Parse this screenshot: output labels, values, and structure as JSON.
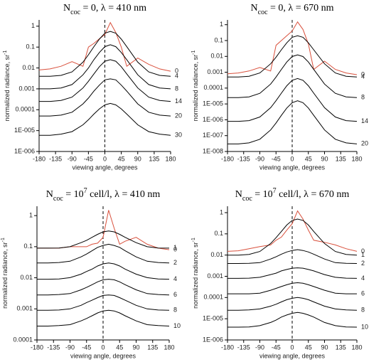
{
  "chart_data": [
    {
      "type": "line",
      "title_parts": [
        {
          "text": "N"
        },
        {
          "text": "coc",
          "shift": "sub"
        },
        {
          "text": " = 0, λ = 410 nm"
        }
      ],
      "xlabel": "viewing angle, degrees",
      "ylabel_parts": [
        {
          "text": "normalized radiance, sr"
        },
        {
          "text": "-1",
          "shift": "super"
        }
      ],
      "yscale": "log",
      "xlim": [
        -180,
        180
      ],
      "ylim": [
        1e-06,
        2
      ],
      "xticks": [
        -180,
        -135,
        -90,
        -45,
        0,
        45,
        90,
        135,
        180
      ],
      "yticks": [
        {
          "value": 1e-06,
          "label": "1E-006"
        },
        {
          "value": 1e-05,
          "label": "1E-005"
        },
        0.0001,
        0.001,
        0.01,
        0.1,
        1
      ],
      "x": [
        -180,
        -150,
        -120,
        -90,
        -60,
        -45,
        -30,
        -15,
        0,
        15,
        30,
        45,
        60,
        90,
        120,
        150,
        180
      ],
      "series": [
        {
          "name": "0",
          "color": "#d9503c",
          "values": [
            0.008,
            0.009,
            0.012,
            0.02,
            0.012,
            0.1,
            0.15,
            0.25,
            0.4,
            1.5,
            0.5,
            0.1,
            0.012,
            0.03,
            0.015,
            0.009,
            0.007
          ]
        },
        {
          "name": "4",
          "color": "#000000",
          "values": [
            0.004,
            0.004,
            0.0044,
            0.0065,
            0.019,
            0.043,
            0.105,
            0.24,
            0.46,
            0.56,
            0.46,
            0.24,
            0.105,
            0.019,
            0.0065,
            0.0044,
            0.004
          ]
        },
        {
          "name": "8",
          "color": "#000000",
          "values": [
            0.001,
            0.001,
            0.0011,
            0.0016,
            0.0047,
            0.01,
            0.025,
            0.055,
            0.105,
            0.13,
            0.105,
            0.055,
            0.025,
            0.0047,
            0.0016,
            0.0011,
            0.001
          ]
        },
        {
          "name": "14",
          "color": "#000000",
          "values": [
            0.00025,
            0.00025,
            0.00028,
            0.0004,
            0.0011,
            0.0023,
            0.0052,
            0.0115,
            0.021,
            0.025,
            0.021,
            0.0115,
            0.0052,
            0.0011,
            0.0004,
            0.00028,
            0.00025
          ]
        },
        {
          "name": "20",
          "color": "#000000",
          "values": [
            5e-05,
            5e-05,
            5.5e-05,
            7.6e-05,
            0.00019,
            0.00036,
            0.00078,
            0.0015,
            0.0027,
            0.003,
            0.0027,
            0.0015,
            0.00078,
            0.00019,
            7.6e-05,
            5.5e-05,
            5e-05
          ]
        },
        {
          "name": "30",
          "color": "#000000",
          "values": [
            6e-06,
            6e-06,
            6.8e-06,
            8.9e-06,
            1.9e-05,
            3.3e-05,
            6.2e-05,
            0.00011,
            0.00017,
            0.0002,
            0.00017,
            0.00011,
            6.2e-05,
            1.9e-05,
            8.9e-06,
            6.8e-06,
            6e-06
          ]
        }
      ]
    },
    {
      "type": "line",
      "title_parts": [
        {
          "text": "N"
        },
        {
          "text": "coc",
          "shift": "sub"
        },
        {
          "text": " = 0, λ = 670 nm"
        }
      ],
      "xlabel": "viewing angle, degrees",
      "ylabel_parts": [
        {
          "text": "normalized radiance, sr"
        },
        {
          "text": "-1",
          "shift": "super"
        }
      ],
      "yscale": "log",
      "xlim": [
        -180,
        180
      ],
      "ylim": [
        1e-08,
        2
      ],
      "xticks": [
        -180,
        -135,
        -90,
        -45,
        0,
        45,
        90,
        135,
        180
      ],
      "yticks": [
        {
          "value": 1e-08,
          "label": "1E-008"
        },
        {
          "value": 1e-07,
          "label": "1E-007"
        },
        {
          "value": 1e-06,
          "label": "1E-006"
        },
        {
          "value": 1e-05,
          "label": "1E-005"
        },
        0.0001,
        0.001,
        0.01,
        0.1,
        1
      ],
      "x": [
        -180,
        -150,
        -120,
        -90,
        -60,
        -45,
        -30,
        -15,
        0,
        15,
        30,
        45,
        60,
        90,
        120,
        150,
        180
      ],
      "series": [
        {
          "name": "0",
          "color": "#d9503c",
          "values": [
            0.0008,
            0.0009,
            0.0012,
            0.002,
            0.0012,
            0.05,
            0.1,
            0.2,
            0.4,
            1.5,
            0.5,
            0.06,
            0.0015,
            0.005,
            0.0015,
            0.0009,
            0.0007
          ]
        },
        {
          "name": "4",
          "color": "#000000",
          "values": [
            0.0005,
            0.0005,
            0.00056,
            0.0009,
            0.0034,
            0.0089,
            0.026,
            0.072,
            0.16,
            0.2,
            0.16,
            0.072,
            0.026,
            0.0034,
            0.0009,
            0.00056,
            0.0005
          ]
        },
        {
          "name": "8",
          "color": "#000000",
          "values": [
            2.5e-05,
            2.5e-05,
            2.8e-05,
            4.7e-05,
            0.00018,
            0.0005,
            0.0015,
            0.0044,
            0.0098,
            0.0125,
            0.0098,
            0.0044,
            0.0015,
            0.00018,
            4.7e-05,
            2.8e-05,
            2.5e-05
          ]
        },
        {
          "name": "14",
          "color": "#000000",
          "values": [
            8e-07,
            8e-07,
            8.9e-07,
            1.5e-06,
            5.8e-06,
            1.6e-05,
            4.8e-05,
            0.00014,
            0.00031,
            0.0004,
            0.00031,
            0.00014,
            4.8e-05,
            5.8e-06,
            1.5e-06,
            8.9e-07,
            8e-07
          ]
        },
        {
          "name": "20",
          "color": "#000000",
          "values": [
            3e-08,
            3e-08,
            3.5e-08,
            5.9e-08,
            2.3e-07,
            6.3e-07,
            1.9e-06,
            5.5e-06,
            1.2e-05,
            1.6e-05,
            1.2e-05,
            5.5e-06,
            1.9e-06,
            2.3e-07,
            5.9e-08,
            3.5e-08,
            3e-08
          ]
        }
      ]
    },
    {
      "type": "line",
      "title_parts": [
        {
          "text": "N"
        },
        {
          "text": "coc",
          "shift": "sub"
        },
        {
          "text": " = 10"
        },
        {
          "text": "7",
          "shift": "super"
        },
        {
          "text": " cell/l, λ = 410 nm"
        }
      ],
      "xlabel": "viewing angle, degrees",
      "ylabel_parts": [
        {
          "text": "normalized radiance, sr"
        },
        {
          "text": "-1",
          "shift": "super"
        }
      ],
      "yscale": "log",
      "xlim": [
        -180,
        180
      ],
      "ylim": [
        0.0001,
        2
      ],
      "xticks": [
        -180,
        -135,
        -90,
        -45,
        0,
        45,
        90,
        135,
        180
      ],
      "yticks": [
        0.0001,
        0.001,
        0.01,
        0.1,
        1
      ],
      "x": [
        -180,
        -150,
        -120,
        -90,
        -60,
        -45,
        -30,
        -15,
        0,
        15,
        30,
        45,
        60,
        90,
        120,
        150,
        180
      ],
      "series": [
        {
          "name": "0",
          "color": "#d9503c",
          "values": [
            0.09,
            0.09,
            0.09,
            0.1,
            0.1,
            0.1,
            0.12,
            0.13,
            0.2,
            1.5,
            0.4,
            0.12,
            0.15,
            0.2,
            0.12,
            0.09,
            0.08
          ]
        },
        {
          "name": "1",
          "color": "#000000",
          "values": [
            0.09,
            0.09,
            0.091,
            0.1,
            0.135,
            0.16,
            0.2,
            0.25,
            0.3,
            0.32,
            0.3,
            0.25,
            0.2,
            0.135,
            0.1,
            0.091,
            0.09
          ]
        },
        {
          "name": "2",
          "color": "#000000",
          "values": [
            0.03,
            0.03,
            0.031,
            0.034,
            0.047,
            0.058,
            0.074,
            0.095,
            0.11,
            0.12,
            0.11,
            0.095,
            0.074,
            0.047,
            0.034,
            0.031,
            0.03
          ]
        },
        {
          "name": "4",
          "color": "#000000",
          "values": [
            0.009,
            0.009,
            0.0092,
            0.0101,
            0.0131,
            0.016,
            0.019,
            0.024,
            0.028,
            0.03,
            0.028,
            0.024,
            0.019,
            0.0131,
            0.0101,
            0.0092,
            0.009
          ]
        },
        {
          "name": "6",
          "color": "#000000",
          "values": [
            0.0028,
            0.0028,
            0.0029,
            0.0031,
            0.0041,
            0.0049,
            0.006,
            0.0074,
            0.0086,
            0.009,
            0.0086,
            0.0074,
            0.006,
            0.0041,
            0.0031,
            0.0029,
            0.0028
          ]
        },
        {
          "name": "8",
          "color": "#000000",
          "values": [
            0.0009,
            0.0009,
            0.00092,
            0.001,
            0.0013,
            0.0016,
            0.0019,
            0.0023,
            0.0027,
            0.0028,
            0.0027,
            0.0023,
            0.0019,
            0.0013,
            0.001,
            0.00092,
            0.0009
          ]
        },
        {
          "name": "10",
          "color": "#000000",
          "values": [
            0.00028,
            0.00028,
            0.00029,
            0.00031,
            0.00041,
            0.00049,
            0.0006,
            0.00074,
            0.00086,
            0.0009,
            0.00086,
            0.00074,
            0.0006,
            0.00041,
            0.00031,
            0.00029,
            0.00028
          ]
        }
      ]
    },
    {
      "type": "line",
      "title_parts": [
        {
          "text": "N"
        },
        {
          "text": "coc",
          "shift": "sub"
        },
        {
          "text": " = 10"
        },
        {
          "text": "7",
          "shift": "super"
        },
        {
          "text": " cell/l, λ = 670 nm"
        }
      ],
      "xlabel": "viewing angle, degrees",
      "ylabel_parts": [
        {
          "text": "normalized radiance, sr"
        },
        {
          "text": "-1",
          "shift": "super"
        }
      ],
      "yscale": "log",
      "xlim": [
        -180,
        180
      ],
      "ylim": [
        1e-06,
        2
      ],
      "xticks": [
        -180,
        -135,
        -90,
        -45,
        0,
        45,
        90,
        135,
        180
      ],
      "yticks": [
        {
          "value": 1e-06,
          "label": "1E-006"
        },
        {
          "value": 1e-05,
          "label": "1E-005"
        },
        0.0001,
        0.001,
        0.01,
        0.1,
        1
      ],
      "x": [
        -180,
        -150,
        -120,
        -90,
        -60,
        -45,
        -30,
        -15,
        0,
        15,
        30,
        45,
        60,
        90,
        120,
        150,
        180
      ],
      "series": [
        {
          "name": "0",
          "color": "#d9503c",
          "values": [
            0.015,
            0.016,
            0.02,
            0.025,
            0.03,
            0.05,
            0.07,
            0.15,
            0.3,
            1.2,
            0.5,
            0.15,
            0.05,
            0.04,
            0.03,
            0.02,
            0.015
          ]
        },
        {
          "name": "1",
          "color": "#000000",
          "values": [
            0.01,
            0.01,
            0.0108,
            0.0148,
            0.035,
            0.066,
            0.13,
            0.26,
            0.43,
            0.5,
            0.43,
            0.26,
            0.13,
            0.035,
            0.0148,
            0.0108,
            0.01
          ]
        },
        {
          "name": "2",
          "color": "#000000",
          "values": [
            0.004,
            0.004,
            0.0041,
            0.0044,
            0.0065,
            0.0083,
            0.011,
            0.014,
            0.0165,
            0.018,
            0.0165,
            0.014,
            0.011,
            0.0065,
            0.0044,
            0.0041,
            0.004
          ]
        },
        {
          "name": "4",
          "color": "#000000",
          "values": [
            0.0008,
            0.0008,
            0.00082,
            0.0009,
            0.0012,
            0.0014,
            0.0018,
            0.0021,
            0.0024,
            0.0025,
            0.0024,
            0.0021,
            0.0018,
            0.0012,
            0.0009,
            0.00082,
            0.0008
          ]
        },
        {
          "name": "6",
          "color": "#000000",
          "values": [
            0.00015,
            0.00015,
            0.00015,
            0.00016,
            0.00022,
            0.00027,
            0.00033,
            0.0004,
            0.00047,
            0.0005,
            0.00047,
            0.0004,
            0.00033,
            0.00022,
            0.00016,
            0.00015,
            0.00015
          ]
        },
        {
          "name": "8",
          "color": "#000000",
          "values": [
            2.5e-05,
            2.5e-05,
            2.6e-05,
            2.9e-05,
            3.9e-05,
            4.8e-05,
            6.2e-05,
            7.9e-05,
            9.2e-05,
            0.0001,
            9.2e-05,
            7.9e-05,
            6.2e-05,
            3.9e-05,
            2.9e-05,
            2.6e-05,
            2.5e-05
          ]
        },
        {
          "name": "10",
          "color": "#000000",
          "values": [
            4e-06,
            4e-06,
            4.1e-06,
            4.7e-06,
            6.7e-06,
            8.6e-06,
            1.2e-05,
            1.5e-05,
            1.8e-05,
            2e-05,
            1.8e-05,
            1.5e-05,
            1.2e-05,
            6.7e-06,
            4.7e-06,
            4.1e-06,
            4e-06
          ]
        }
      ]
    }
  ]
}
